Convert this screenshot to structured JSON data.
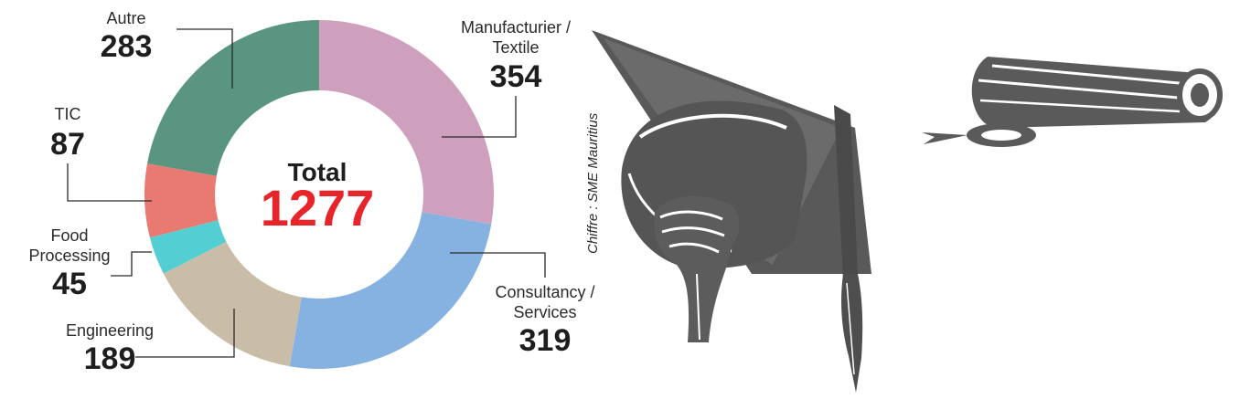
{
  "chart_data": {
    "type": "pie",
    "style": "donut",
    "center_label": "Total",
    "total": 1277,
    "colors": {
      "total_value": "#e8242b"
    },
    "slices": [
      {
        "label_lines": [
          "Manufacturier /",
          "Textile"
        ],
        "value": 354,
        "color": "#cfa0bd"
      },
      {
        "label_lines": [
          "Consultancy /",
          "Services"
        ],
        "value": 319,
        "color": "#85b2e0"
      },
      {
        "label_lines": [
          "Engineering"
        ],
        "value": 189,
        "color": "#c9bda8"
      },
      {
        "label_lines": [
          "Food",
          "Processing"
        ],
        "value": 45,
        "color": "#53cfd3"
      },
      {
        "label_lines": [
          "TIC"
        ],
        "value": 87,
        "color": "#e87a72"
      },
      {
        "label_lines": [
          "Autre"
        ],
        "value": 283,
        "color": "#5a9582"
      }
    ]
  },
  "credit": "Chiffre : SME Mauritius",
  "illustrations": [
    {
      "name": "graduation-cap-icon",
      "color": "#5a5a5a"
    },
    {
      "name": "diploma-scroll-icon",
      "color": "#5a5a5a"
    }
  ]
}
